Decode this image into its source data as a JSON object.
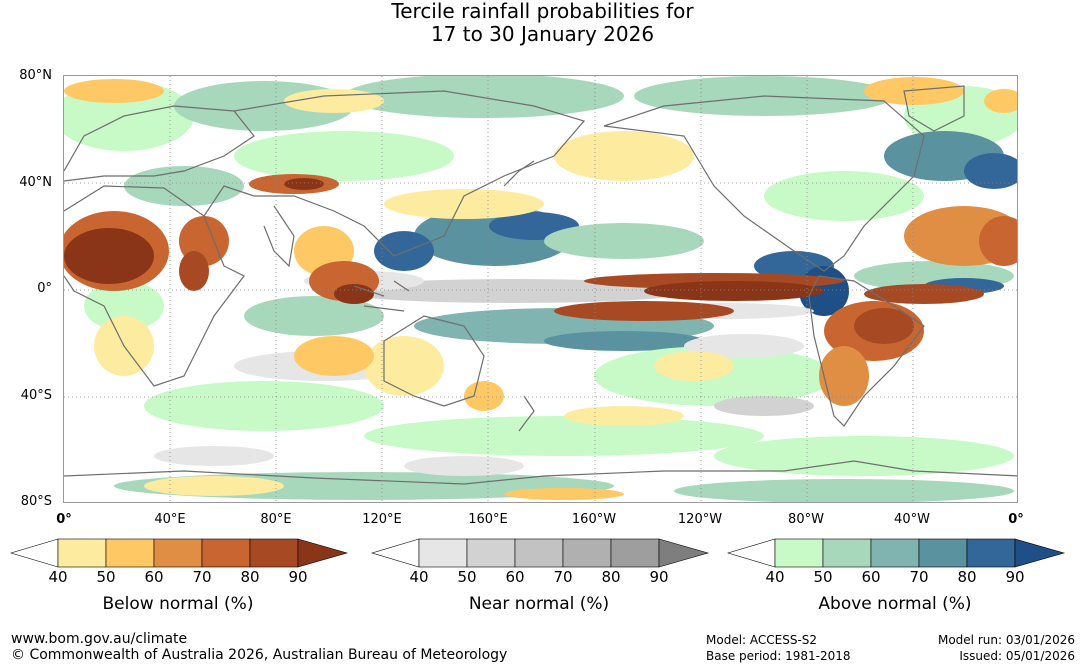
{
  "title": {
    "line1": "Tercile rainfall probabilities for",
    "line2": "17 to 30 January 2026"
  },
  "map": {
    "lat_labels": [
      "80°N",
      "40°N",
      "0°",
      "40°S",
      "80°S"
    ],
    "lon_labels": [
      "0°",
      "40°E",
      "80°E",
      "120°E",
      "160°E",
      "160°W",
      "120°W",
      "80°W",
      "40°W",
      "0°"
    ],
    "colors": {
      "ocean_bg": "#ffffff",
      "coast": "#6e6e6e",
      "grid": "#888888"
    }
  },
  "legends": [
    {
      "title": "Below normal (%)",
      "ticks": [
        "40",
        "50",
        "60",
        "70",
        "80",
        "90"
      ],
      "colors": [
        "#ffffff",
        "#fdeca0",
        "#fec965",
        "#e08e44",
        "#c96530",
        "#a74a24",
        "#8b3518"
      ]
    },
    {
      "title": "Near normal (%)",
      "ticks": [
        "40",
        "50",
        "60",
        "70",
        "80",
        "90"
      ],
      "colors": [
        "#ffffff",
        "#e6e6e6",
        "#d2d2d2",
        "#c2c2c2",
        "#b0b0b0",
        "#9e9e9e",
        "#7e7e7e"
      ]
    },
    {
      "title": "Above normal (%)",
      "ticks": [
        "40",
        "50",
        "60",
        "70",
        "80",
        "90"
      ],
      "colors": [
        "#ffffff",
        "#c8fac8",
        "#a8d8bc",
        "#7fb4b0",
        "#5a92a0",
        "#336699",
        "#1e4f86"
      ]
    }
  ],
  "footer": {
    "website": "www.bom.gov.au/climate",
    "copyright": "© Commonwealth of Australia 2026, Australian Bureau of Meteorology",
    "model": "Model: ACCESS-S2",
    "base_period": "Base period: 1981-2018",
    "model_run": "Model run: 03/01/2026",
    "issued": "Issued: 05/01/2026"
  }
}
